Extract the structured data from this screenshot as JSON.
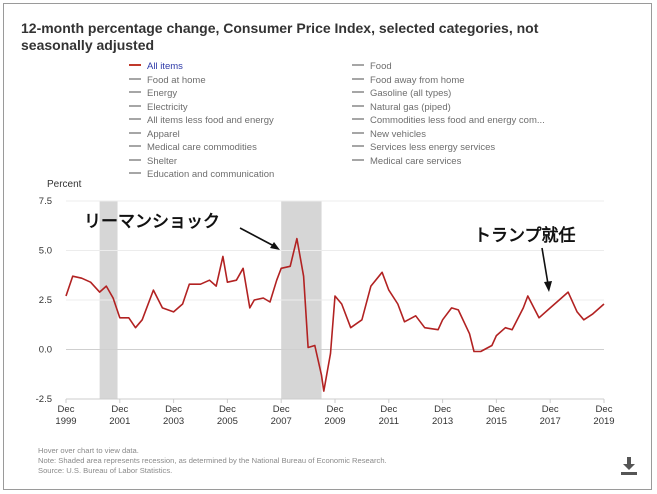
{
  "title": "12-month percentage change, Consumer Price Index, selected categories, not seasonally adjusted",
  "legend": {
    "left": [
      "All items",
      "Food at home",
      "Energy",
      "Electricity",
      "All items less food and energy",
      "Apparel",
      "Medical care commodities",
      "Shelter",
      "Education and communication"
    ],
    "right": [
      "Food",
      "Food away from home",
      "Gasoline (all types)",
      "Natural gas (piped)",
      "Commodities less food and energy com...",
      "New vehicles",
      "Services less energy services",
      "Medical care services"
    ],
    "active": "All items"
  },
  "colors": {
    "series": "#b22222",
    "inactive_swatch": "#a6a6a6",
    "active_legend_text": "#2e3aa8",
    "recession": "#d6d6d6"
  },
  "annotations": {
    "lehman": "リーマンショック",
    "trump": "トランプ就任"
  },
  "footer": {
    "hover": "Hover over chart to view data.",
    "note": "Note: Shaded area represents recession, as determined by the National Bureau of Economic Research.",
    "source": "Source: U.S. Bureau of Labor Statistics."
  },
  "icons": {
    "download": "download-icon"
  },
  "chart_data": {
    "type": "line",
    "ylabel": "Percent",
    "ylim": [
      -2.5,
      7.5
    ],
    "yticks": [
      "7.5",
      "5.0",
      "2.5",
      "0.0",
      "-2.5"
    ],
    "xticks": [
      {
        "top": "Dec",
        "bottom": "1999",
        "date": 1999.917
      },
      {
        "top": "Dec",
        "bottom": "2001",
        "date": 2001.917
      },
      {
        "top": "Dec",
        "bottom": "2003",
        "date": 2003.917
      },
      {
        "top": "Dec",
        "bottom": "2005",
        "date": 2005.917
      },
      {
        "top": "Dec",
        "bottom": "2007",
        "date": 2007.917
      },
      {
        "top": "Dec",
        "bottom": "2009",
        "date": 2009.917
      },
      {
        "top": "Dec",
        "bottom": "2011",
        "date": 2011.917
      },
      {
        "top": "Dec",
        "bottom": "2013",
        "date": 2013.917
      },
      {
        "top": "Dec",
        "bottom": "2015",
        "date": 2015.917
      },
      {
        "top": "Dec",
        "bottom": "2017",
        "date": 2017.917
      },
      {
        "top": "Dec",
        "bottom": "2019",
        "date": 2019.917
      }
    ],
    "xlim": [
      1999.917,
      2019.917
    ],
    "recessions": [
      [
        2001.167,
        2001.833
      ],
      [
        2007.917,
        2009.417
      ]
    ],
    "series": [
      {
        "name": "All items",
        "points": [
          [
            1999.917,
            2.7
          ],
          [
            2000.167,
            3.7
          ],
          [
            2000.5,
            3.6
          ],
          [
            2000.833,
            3.4
          ],
          [
            2001.167,
            2.9
          ],
          [
            2001.417,
            3.2
          ],
          [
            2001.667,
            2.6
          ],
          [
            2001.917,
            1.6
          ],
          [
            2002.25,
            1.6
          ],
          [
            2002.5,
            1.1
          ],
          [
            2002.75,
            1.5
          ],
          [
            2003.167,
            3.0
          ],
          [
            2003.5,
            2.1
          ],
          [
            2003.917,
            1.9
          ],
          [
            2004.25,
            2.3
          ],
          [
            2004.5,
            3.3
          ],
          [
            2004.917,
            3.3
          ],
          [
            2005.25,
            3.5
          ],
          [
            2005.5,
            3.2
          ],
          [
            2005.75,
            4.7
          ],
          [
            2005.917,
            3.4
          ],
          [
            2006.25,
            3.5
          ],
          [
            2006.5,
            4.1
          ],
          [
            2006.75,
            2.1
          ],
          [
            2006.917,
            2.5
          ],
          [
            2007.25,
            2.6
          ],
          [
            2007.5,
            2.4
          ],
          [
            2007.75,
            3.5
          ],
          [
            2007.917,
            4.1
          ],
          [
            2008.25,
            4.2
          ],
          [
            2008.5,
            5.6
          ],
          [
            2008.75,
            3.7
          ],
          [
            2008.917,
            0.1
          ],
          [
            2009.167,
            0.2
          ],
          [
            2009.417,
            -1.3
          ],
          [
            2009.5,
            -2.1
          ],
          [
            2009.75,
            -0.2
          ],
          [
            2009.917,
            2.7
          ],
          [
            2010.167,
            2.3
          ],
          [
            2010.5,
            1.1
          ],
          [
            2010.917,
            1.5
          ],
          [
            2011.25,
            3.2
          ],
          [
            2011.667,
            3.9
          ],
          [
            2011.917,
            3.0
          ],
          [
            2012.25,
            2.3
          ],
          [
            2012.5,
            1.4
          ],
          [
            2012.917,
            1.7
          ],
          [
            2013.25,
            1.1
          ],
          [
            2013.75,
            1.0
          ],
          [
            2013.917,
            1.5
          ],
          [
            2014.25,
            2.1
          ],
          [
            2014.5,
            2.0
          ],
          [
            2014.917,
            0.8
          ],
          [
            2015.083,
            -0.1
          ],
          [
            2015.333,
            -0.1
          ],
          [
            2015.75,
            0.2
          ],
          [
            2015.917,
            0.7
          ],
          [
            2016.25,
            1.1
          ],
          [
            2016.5,
            1.0
          ],
          [
            2016.917,
            2.1
          ],
          [
            2017.083,
            2.7
          ],
          [
            2017.5,
            1.6
          ],
          [
            2017.917,
            2.1
          ],
          [
            2018.25,
            2.5
          ],
          [
            2018.583,
            2.9
          ],
          [
            2018.917,
            1.9
          ],
          [
            2019.167,
            1.5
          ],
          [
            2019.5,
            1.8
          ],
          [
            2019.917,
            2.3
          ]
        ]
      }
    ]
  }
}
